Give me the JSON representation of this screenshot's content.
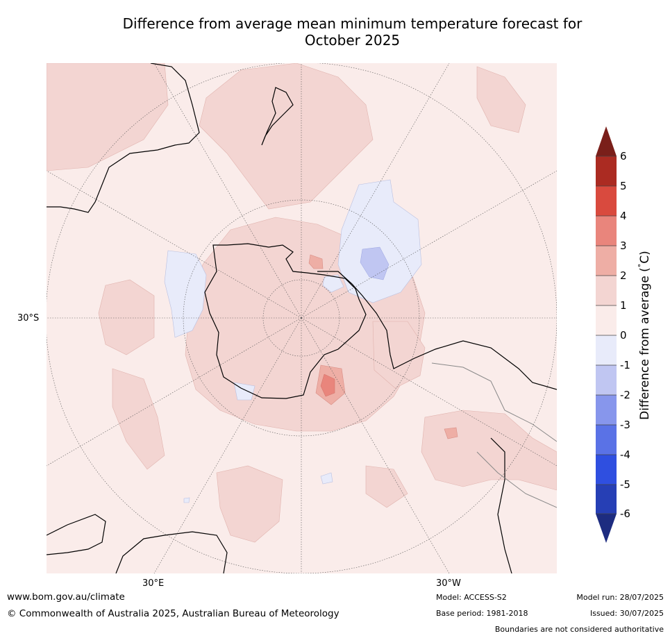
{
  "title_line1": "Difference from average mean minimum temperature forecast for",
  "title_line2": "October 2025",
  "map": {
    "projection": "south-polar-stereographic",
    "lat_label": "30°S",
    "lon_labels": [
      "30°E",
      "30°W"
    ]
  },
  "colorbar": {
    "title": "Difference from average (",
    "title_unit": "C)",
    "title_degree": "°",
    "ticks": [
      "6",
      "5",
      "4",
      "3",
      "2",
      "1",
      "0",
      "-1",
      "-2",
      "-3",
      "-4",
      "-5",
      "-6"
    ],
    "colors": {
      "over": "#7a1f1a",
      "5_6": "#ab2b22",
      "4_5": "#d94a3e",
      "3_4": "#e9857c",
      "2_3": "#eeaea5",
      "1_2": "#f3d5d2",
      "0_1": "#faecea",
      "m1_0": "#e8ebfa",
      "m2_m1": "#c0c6f2",
      "m3_m2": "#8796ec",
      "m4_m3": "#5a72e6",
      "m5_m4": "#2f4fe0",
      "m6_m5": "#263fb5",
      "under": "#1d2c80"
    }
  },
  "footer": {
    "website": "www.bom.gov.au/climate",
    "copyright": "© Commonwealth of Australia 2025, Australian Bureau of Meteorology",
    "model": "Model: ACCESS-S2",
    "base_period": "Base period: 1981-2018",
    "model_run": "Model run: 28/07/2025",
    "issued": "Issued: 30/07/2025",
    "disclaimer": "Boundaries are not considered authoritative"
  }
}
